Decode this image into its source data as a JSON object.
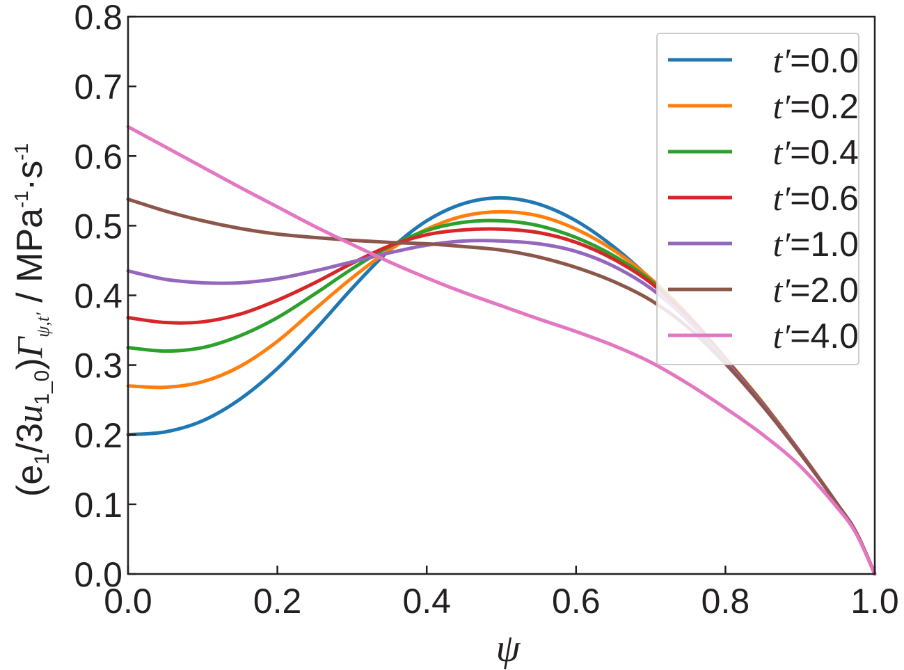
{
  "chart_data": {
    "type": "line",
    "title": "",
    "xlabel": "ψ",
    "ylabel_parts": {
      "open": "(e",
      "sub1": "1",
      "mid": "/3",
      "u": "u",
      "sub2": "1_0",
      "close": ")",
      "gamma": "Γ",
      "gamma_sub": "ψ,t′",
      "unit": " / MPa",
      "exp1": "-1",
      "dot_s": "·s",
      "exp2": "-1"
    },
    "xlim": [
      0.0,
      1.0
    ],
    "ylim": [
      0.0,
      0.8
    ],
    "xticks": [
      "0.0",
      "0.2",
      "0.4",
      "0.6",
      "0.8",
      "1.0"
    ],
    "yticks": [
      "0.0",
      "0.1",
      "0.2",
      "0.3",
      "0.4",
      "0.5",
      "0.6",
      "0.7",
      "0.8"
    ],
    "grid": false,
    "legend_position": "top-right",
    "x": [
      0.0,
      0.05,
      0.1,
      0.15,
      0.2,
      0.25,
      0.3,
      0.35,
      0.4,
      0.45,
      0.5,
      0.55,
      0.6,
      0.65,
      0.7,
      0.75,
      0.8,
      0.85,
      0.9,
      0.95,
      0.975,
      1.0
    ],
    "series": [
      {
        "name": "t′=0.0",
        "color": "#1f77b4",
        "values": [
          0.2,
          0.204,
          0.22,
          0.251,
          0.295,
          0.35,
          0.41,
          0.465,
          0.507,
          0.532,
          0.54,
          0.531,
          0.507,
          0.47,
          0.423,
          0.367,
          0.308,
          0.245,
          0.175,
          0.1,
          0.06,
          0.0
        ]
      },
      {
        "name": "t′=0.2",
        "color": "#ff7f0e",
        "values": [
          0.27,
          0.268,
          0.276,
          0.298,
          0.334,
          0.38,
          0.425,
          0.465,
          0.495,
          0.514,
          0.52,
          0.514,
          0.495,
          0.465,
          0.424,
          0.372,
          0.31,
          0.246,
          0.175,
          0.1,
          0.06,
          0.0
        ]
      },
      {
        "name": "t′=0.4",
        "color": "#2ca02c",
        "values": [
          0.325,
          0.32,
          0.325,
          0.342,
          0.368,
          0.402,
          0.438,
          0.47,
          0.493,
          0.505,
          0.507,
          0.5,
          0.483,
          0.457,
          0.421,
          0.37,
          0.309,
          0.245,
          0.175,
          0.1,
          0.06,
          0.0
        ]
      },
      {
        "name": "t′=0.6",
        "color": "#d62728",
        "values": [
          0.368,
          0.361,
          0.362,
          0.373,
          0.393,
          0.418,
          0.446,
          0.471,
          0.487,
          0.494,
          0.495,
          0.49,
          0.476,
          0.452,
          0.418,
          0.369,
          0.308,
          0.244,
          0.175,
          0.1,
          0.06,
          0.0
        ]
      },
      {
        "name": "t′=1.0",
        "color": "#9467bd",
        "values": [
          0.435,
          0.423,
          0.418,
          0.418,
          0.424,
          0.435,
          0.448,
          0.461,
          0.472,
          0.478,
          0.478,
          0.474,
          0.463,
          0.442,
          0.41,
          0.364,
          0.306,
          0.243,
          0.174,
          0.1,
          0.06,
          0.0
        ]
      },
      {
        "name": "t′=2.0",
        "color": "#8c564b",
        "values": [
          0.538,
          0.521,
          0.507,
          0.496,
          0.488,
          0.483,
          0.479,
          0.476,
          0.474,
          0.47,
          0.465,
          0.455,
          0.44,
          0.42,
          0.393,
          0.354,
          0.302,
          0.241,
          0.173,
          0.1,
          0.06,
          0.0
        ]
      },
      {
        "name": "t′=4.0",
        "color": "#e377c2",
        "values": [
          0.642,
          0.613,
          0.584,
          0.555,
          0.527,
          0.499,
          0.473,
          0.448,
          0.425,
          0.404,
          0.385,
          0.366,
          0.348,
          0.328,
          0.304,
          0.273,
          0.238,
          0.2,
          0.155,
          0.095,
          0.058,
          0.0
        ]
      }
    ]
  }
}
